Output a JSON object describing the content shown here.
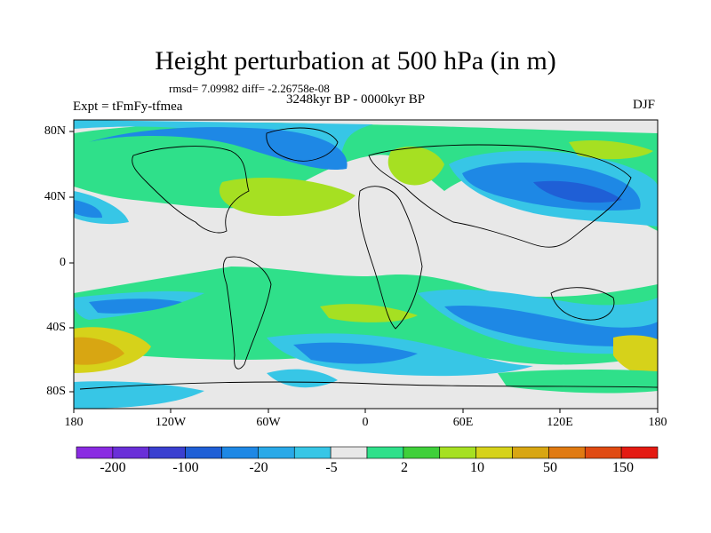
{
  "title": "Height perturbation at 500 hPa (in m)",
  "stats": "rmsd= 7.09982 diff= -2.26758e-08",
  "period": "3248kyr BP - 0000kyr BP",
  "experiment": "Expt = tFmFy-tfmea",
  "season": "DJF",
  "lat_labels": [
    "80N",
    "40N",
    "0",
    "40S",
    "80S"
  ],
  "lon_labels": [
    "180",
    "120W",
    "60W",
    "0",
    "60E",
    "120E",
    "180"
  ],
  "colorbar": {
    "labels": [
      "-200",
      "-100",
      "-20",
      "-5",
      "2",
      "10",
      "50",
      "150"
    ],
    "colors": [
      "#8a2be2",
      "#6a2fd8",
      "#3a3fd0",
      "#1f5fd6",
      "#1e88e5",
      "#29a9e8",
      "#37c6e6",
      "#e8e8e8",
      "#2fe08a",
      "#3fd03a",
      "#a6e022",
      "#d6d21a",
      "#d8a612",
      "#e07a12",
      "#e04a12",
      "#e41a12"
    ]
  }
}
